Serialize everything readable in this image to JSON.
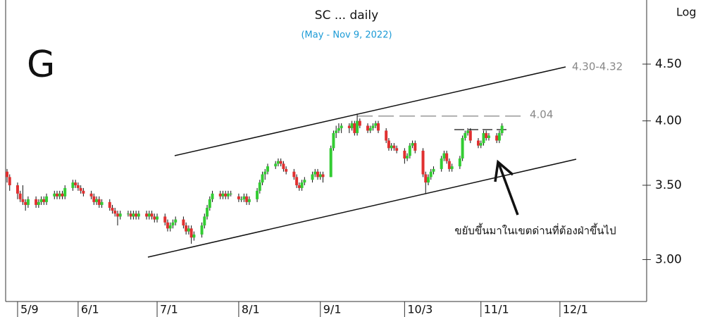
{
  "chart_data": {
    "type": "candlestick",
    "title": "SC ... daily",
    "subtitle": "(May - Nov 9, 2022)",
    "corner_label": "G",
    "scale_label": "Log",
    "log_scale": true,
    "up_color": "#33cc33",
    "down_color": "#e03030",
    "x": [
      "5/5",
      "5/6",
      "5/9",
      "5/10",
      "5/11",
      "5/12",
      "5/13",
      "5/16",
      "5/17",
      "5/18",
      "5/19",
      "5/20",
      "5/23",
      "5/24",
      "5/25",
      "5/26",
      "5/27",
      "5/30",
      "5/31",
      "6/1",
      "6/2",
      "6/3",
      "6/6",
      "6/7",
      "6/8",
      "6/9",
      "6/10",
      "6/13",
      "6/14",
      "6/15",
      "6/16",
      "6/17",
      "6/20",
      "6/21",
      "6/22",
      "6/23",
      "6/24",
      "6/27",
      "6/28",
      "6/29",
      "6/30",
      "7/1",
      "7/4",
      "7/5",
      "7/6",
      "7/7",
      "7/8",
      "7/11",
      "7/12",
      "7/13",
      "7/14",
      "7/15",
      "7/18",
      "7/19",
      "7/20",
      "7/21",
      "7/22",
      "7/25",
      "7/26",
      "7/27",
      "7/28",
      "7/29",
      "8/1",
      "8/2",
      "8/3",
      "8/4",
      "8/5",
      "8/8",
      "8/9",
      "8/10",
      "8/11",
      "8/12",
      "8/15",
      "8/16",
      "8/17",
      "8/18",
      "8/19",
      "8/22",
      "8/23",
      "8/24",
      "8/25",
      "8/26",
      "8/29",
      "8/30",
      "8/31",
      "9/1",
      "9/2",
      "9/5",
      "9/6",
      "9/7",
      "9/8",
      "9/9",
      "9/12",
      "9/13",
      "9/14",
      "9/15",
      "9/16",
      "9/19",
      "9/20",
      "9/21",
      "9/22",
      "9/23",
      "9/26",
      "9/27",
      "9/28",
      "9/29",
      "9/30",
      "10/3",
      "10/4",
      "10/5",
      "10/6",
      "10/7",
      "10/10",
      "10/11",
      "10/12",
      "10/13",
      "10/14",
      "10/17",
      "10/18",
      "10/19",
      "10/20",
      "10/21",
      "10/24",
      "10/25",
      "10/26",
      "10/27",
      "10/28",
      "10/31",
      "11/1",
      "11/2",
      "11/3",
      "11/4",
      "11/7",
      "11/8",
      "11/9"
    ],
    "ohlc": [
      [
        3.6,
        3.62,
        3.52,
        3.56
      ],
      [
        3.56,
        3.58,
        3.46,
        3.5
      ],
      [
        3.5,
        3.52,
        3.4,
        3.44
      ],
      [
        3.44,
        3.46,
        3.38,
        3.4
      ],
      [
        3.4,
        3.5,
        3.36,
        3.38
      ],
      [
        3.38,
        3.4,
        3.32,
        3.36
      ],
      [
        3.36,
        3.42,
        3.34,
        3.4
      ],
      [
        3.4,
        3.42,
        3.34,
        3.36
      ],
      [
        3.36,
        3.4,
        3.34,
        3.38
      ],
      [
        3.38,
        3.42,
        3.36,
        3.4
      ],
      [
        3.4,
        3.42,
        3.36,
        3.38
      ],
      [
        3.38,
        3.44,
        3.36,
        3.42
      ],
      [
        3.42,
        3.46,
        3.4,
        3.44
      ],
      [
        3.44,
        3.46,
        3.4,
        3.42
      ],
      [
        3.42,
        3.46,
        3.4,
        3.44
      ],
      [
        3.44,
        3.46,
        3.4,
        3.42
      ],
      [
        3.42,
        3.5,
        3.4,
        3.48
      ],
      [
        3.48,
        3.54,
        3.46,
        3.52
      ],
      [
        3.52,
        3.54,
        3.48,
        3.5
      ],
      [
        3.5,
        3.52,
        3.46,
        3.48
      ],
      [
        3.48,
        3.5,
        3.44,
        3.46
      ],
      [
        3.46,
        3.48,
        3.42,
        3.44
      ],
      [
        3.44,
        3.46,
        3.4,
        3.42
      ],
      [
        3.42,
        3.44,
        3.36,
        3.38
      ],
      [
        3.38,
        3.42,
        3.36,
        3.4
      ],
      [
        3.4,
        3.42,
        3.34,
        3.36
      ],
      [
        3.36,
        3.4,
        3.34,
        3.38
      ],
      [
        3.38,
        3.4,
        3.32,
        3.34
      ],
      [
        3.34,
        3.36,
        3.3,
        3.32
      ],
      [
        3.32,
        3.34,
        3.28,
        3.3
      ],
      [
        3.3,
        3.32,
        3.22,
        3.28
      ],
      [
        3.28,
        3.32,
        3.26,
        3.3
      ],
      [
        3.3,
        3.32,
        3.28,
        3.3
      ],
      [
        3.3,
        3.32,
        3.26,
        3.28
      ],
      [
        3.28,
        3.32,
        3.26,
        3.3
      ],
      [
        3.3,
        3.32,
        3.26,
        3.28
      ],
      [
        3.28,
        3.32,
        3.26,
        3.3
      ],
      [
        3.3,
        3.32,
        3.26,
        3.28
      ],
      [
        3.28,
        3.32,
        3.26,
        3.3
      ],
      [
        3.3,
        3.32,
        3.26,
        3.28
      ],
      [
        3.28,
        3.3,
        3.24,
        3.26
      ],
      [
        3.26,
        3.3,
        3.24,
        3.28
      ],
      [
        3.28,
        3.3,
        3.22,
        3.24
      ],
      [
        3.24,
        3.26,
        3.18,
        3.2
      ],
      [
        3.2,
        3.24,
        3.18,
        3.22
      ],
      [
        3.22,
        3.26,
        3.2,
        3.24
      ],
      [
        3.24,
        3.28,
        3.22,
        3.26
      ],
      [
        3.26,
        3.28,
        3.2,
        3.22
      ],
      [
        3.22,
        3.24,
        3.16,
        3.18
      ],
      [
        3.18,
        3.22,
        3.16,
        3.2
      ],
      [
        3.2,
        3.22,
        3.1,
        3.14
      ],
      [
        3.14,
        3.18,
        3.12,
        3.16
      ],
      [
        3.16,
        3.24,
        3.14,
        3.22
      ],
      [
        3.22,
        3.3,
        3.2,
        3.28
      ],
      [
        3.28,
        3.36,
        3.26,
        3.34
      ],
      [
        3.34,
        3.42,
        3.32,
        3.4
      ],
      [
        3.4,
        3.46,
        3.38,
        3.44
      ],
      [
        3.44,
        3.46,
        3.4,
        3.42
      ],
      [
        3.42,
        3.46,
        3.4,
        3.44
      ],
      [
        3.44,
        3.46,
        3.4,
        3.42
      ],
      [
        3.42,
        3.46,
        3.4,
        3.44
      ],
      [
        3.44,
        3.46,
        3.42,
        3.44
      ],
      [
        3.42,
        3.44,
        3.38,
        3.4
      ],
      [
        3.4,
        3.42,
        3.38,
        3.4
      ],
      [
        3.4,
        3.44,
        3.38,
        3.42
      ],
      [
        3.42,
        3.44,
        3.36,
        3.38
      ],
      [
        3.38,
        3.42,
        3.36,
        3.4
      ],
      [
        3.4,
        3.48,
        3.38,
        3.46
      ],
      [
        3.46,
        3.54,
        3.44,
        3.52
      ],
      [
        3.52,
        3.6,
        3.5,
        3.58
      ],
      [
        3.58,
        3.62,
        3.54,
        3.6
      ],
      [
        3.6,
        3.66,
        3.58,
        3.64
      ],
      [
        3.64,
        3.68,
        3.62,
        3.66
      ],
      [
        3.66,
        3.7,
        3.64,
        3.68
      ],
      [
        3.68,
        3.7,
        3.64,
        3.66
      ],
      [
        3.66,
        3.68,
        3.6,
        3.62
      ],
      [
        3.62,
        3.64,
        3.58,
        3.6
      ],
      [
        3.6,
        3.62,
        3.54,
        3.56
      ],
      [
        3.56,
        3.58,
        3.48,
        3.5
      ],
      [
        3.5,
        3.52,
        3.46,
        3.48
      ],
      [
        3.48,
        3.54,
        3.46,
        3.52
      ],
      [
        3.52,
        3.56,
        3.5,
        3.54
      ],
      [
        3.54,
        3.6,
        3.52,
        3.58
      ],
      [
        3.58,
        3.62,
        3.56,
        3.6
      ],
      [
        3.6,
        3.62,
        3.54,
        3.56
      ],
      [
        3.56,
        3.6,
        3.54,
        3.58
      ],
      [
        3.58,
        3.6,
        3.52,
        3.56
      ],
      [
        3.56,
        3.8,
        3.56,
        3.78
      ],
      [
        3.78,
        3.92,
        3.76,
        3.9
      ],
      [
        3.9,
        3.96,
        3.86,
        3.92
      ],
      [
        3.92,
        3.98,
        3.9,
        3.94
      ],
      [
        3.94,
        3.98,
        3.9,
        3.96
      ],
      [
        3.96,
        3.98,
        3.9,
        3.94
      ],
      [
        3.94,
        4.0,
        3.92,
        3.98
      ],
      [
        3.98,
        4.0,
        3.88,
        3.9
      ],
      [
        3.9,
        4.06,
        3.88,
        4.0
      ],
      [
        4.0,
        4.02,
        3.94,
        3.96
      ],
      [
        3.96,
        3.98,
        3.9,
        3.92
      ],
      [
        3.92,
        3.96,
        3.9,
        3.94
      ],
      [
        3.94,
        3.98,
        3.92,
        3.96
      ],
      [
        3.96,
        4.0,
        3.94,
        3.98
      ],
      [
        3.98,
        4.0,
        3.9,
        3.92
      ],
      [
        3.92,
        3.94,
        3.82,
        3.84
      ],
      [
        3.84,
        3.86,
        3.76,
        3.78
      ],
      [
        3.78,
        3.82,
        3.76,
        3.8
      ],
      [
        3.8,
        3.82,
        3.76,
        3.78
      ],
      [
        3.78,
        3.8,
        3.74,
        3.76
      ],
      [
        3.76,
        3.78,
        3.66,
        3.7
      ],
      [
        3.7,
        3.74,
        3.68,
        3.72
      ],
      [
        3.72,
        3.82,
        3.7,
        3.8
      ],
      [
        3.8,
        3.84,
        3.78,
        3.82
      ],
      [
        3.82,
        3.84,
        3.74,
        3.76
      ],
      [
        3.76,
        3.78,
        3.56,
        3.58
      ],
      [
        3.58,
        3.6,
        3.44,
        3.52
      ],
      [
        3.52,
        3.58,
        3.5,
        3.56
      ],
      [
        3.56,
        3.62,
        3.54,
        3.6
      ],
      [
        3.6,
        3.64,
        3.58,
        3.62
      ],
      [
        3.62,
        3.72,
        3.6,
        3.7
      ],
      [
        3.7,
        3.76,
        3.68,
        3.74
      ],
      [
        3.74,
        3.76,
        3.66,
        3.68
      ],
      [
        3.68,
        3.7,
        3.6,
        3.62
      ],
      [
        3.62,
        3.66,
        3.6,
        3.64
      ],
      [
        3.64,
        3.72,
        3.62,
        3.7
      ],
      [
        3.7,
        3.88,
        3.68,
        3.86
      ],
      [
        3.86,
        3.92,
        3.84,
        3.9
      ],
      [
        3.9,
        3.94,
        3.88,
        3.92
      ],
      [
        3.92,
        3.94,
        3.82,
        3.84
      ],
      [
        3.84,
        3.86,
        3.78,
        3.8
      ],
      [
        3.8,
        3.84,
        3.78,
        3.82
      ],
      [
        3.82,
        3.92,
        3.8,
        3.9
      ],
      [
        3.9,
        3.92,
        3.84,
        3.86
      ],
      [
        3.86,
        3.9,
        3.84,
        3.88
      ],
      [
        3.88,
        3.9,
        3.82,
        3.84
      ],
      [
        3.84,
        3.92,
        3.82,
        3.9
      ],
      [
        3.9,
        3.98,
        3.88,
        3.96
      ]
    ],
    "xlim": [
      "5/5",
      "12/31"
    ],
    "xticks": [
      "5/9",
      "6/1",
      "7/1",
      "8/1",
      "9/1",
      "10/3",
      "11/1",
      "12/1"
    ],
    "ylim": [
      2.75,
      5.14
    ],
    "yticks": [
      {
        "value": 3,
        "label": "3.00"
      },
      {
        "value": 3.5,
        "label": "3.50"
      },
      {
        "value": 4,
        "label": "4.00"
      },
      {
        "value": 4.5,
        "label": "4.50"
      }
    ],
    "resistance": 4.04,
    "target_label": "4.30-4.32",
    "note": "ขยับขึ้นมาในเขตด่านที่ต้องฝ่าขึ้นไป"
  }
}
